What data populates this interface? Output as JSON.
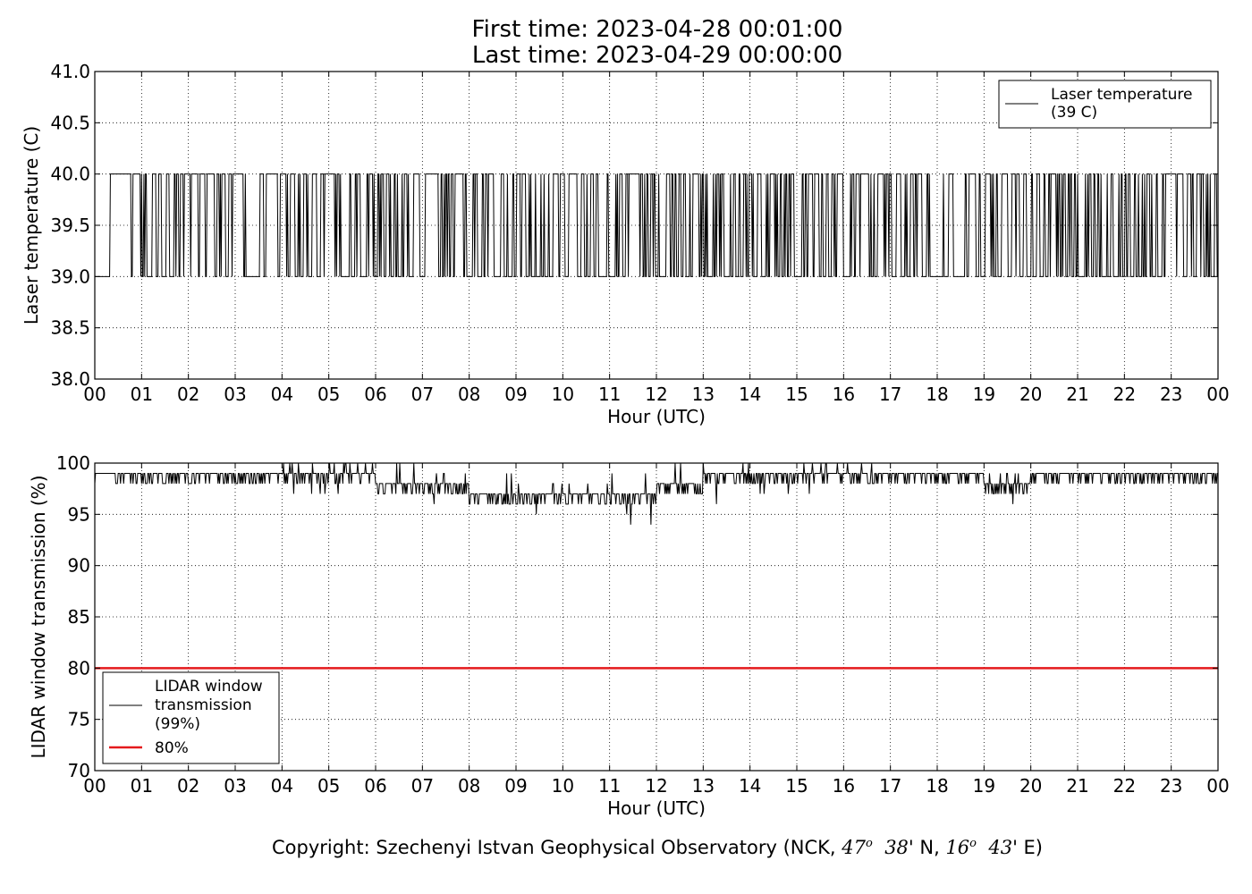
{
  "figure": {
    "title_line1": "First time: 2023-04-28 00:01:00",
    "title_line2": "Last time: 2023-04-29 00:00:00",
    "copyright_prefix": "Copyright: Szechenyi Istvan Geophysical Observatory (NCK, ",
    "coord_lat_deg": "47",
    "coord_lat_min": "38",
    "coord_lat_suffix": "' N, ",
    "coord_lon_deg": "16",
    "coord_lon_min": "43",
    "coord_lon_suffix": "' E)",
    "degree_mark": "o"
  },
  "chart_data": [
    {
      "type": "line",
      "xlabel": "Hour (UTC)",
      "ylabel": "Laser temperature (C)",
      "xlim": [
        0,
        24
      ],
      "ylim": [
        38.0,
        41.0
      ],
      "xticks": [
        "00",
        "01",
        "02",
        "03",
        "04",
        "05",
        "06",
        "07",
        "08",
        "09",
        "10",
        "11",
        "12",
        "13",
        "14",
        "15",
        "16",
        "17",
        "18",
        "19",
        "20",
        "21",
        "22",
        "23",
        "00"
      ],
      "yticks": [
        "38.0",
        "38.5",
        "39.0",
        "39.5",
        "40.0",
        "40.5",
        "41.0"
      ],
      "grid": true,
      "legend_position": "top-right",
      "series": [
        {
          "name": "Laser temperature\n(39 C)",
          "color": "#000000",
          "values_set": [
            39.0,
            40.0
          ],
          "baseline": 39.0,
          "toggle_density": [
            0.2,
            0.55,
            0.45,
            0.35,
            0.45,
            0.6,
            0.45,
            0.5,
            0.45,
            0.55,
            0.5,
            0.55,
            0.45,
            0.6,
            0.65,
            0.65,
            0.65,
            0.45,
            0.3,
            0.35,
            0.55,
            0.6,
            0.6,
            0.6
          ]
        }
      ]
    },
    {
      "type": "line",
      "xlabel": "Hour (UTC)",
      "ylabel": "LIDAR window transmission (%)",
      "xlim": [
        0,
        24
      ],
      "ylim": [
        70,
        100
      ],
      "xticks": [
        "00",
        "01",
        "02",
        "03",
        "04",
        "05",
        "06",
        "07",
        "08",
        "09",
        "10",
        "11",
        "12",
        "13",
        "14",
        "15",
        "16",
        "17",
        "18",
        "19",
        "20",
        "21",
        "22",
        "23",
        "00"
      ],
      "yticks": [
        "70",
        "75",
        "80",
        "85",
        "90",
        "95",
        "100"
      ],
      "grid": true,
      "legend_position": "bottom-left",
      "series": [
        {
          "name": "LIDAR window\ntransmission\n(99%)",
          "color": "#000000",
          "hourly_typical": [
            99,
            99,
            99,
            99,
            98.5,
            98.5,
            98,
            97.5,
            97,
            96.5,
            96.5,
            97,
            98,
            98.5,
            98.5,
            99,
            98.5,
            98.5,
            98.5,
            98,
            99,
            99,
            99,
            99
          ],
          "hourly_min": [
            98,
            98,
            98,
            98,
            97,
            97,
            96,
            96,
            95,
            95,
            95,
            94,
            97,
            96,
            97,
            97,
            98,
            97,
            98,
            96,
            98,
            98,
            98,
            98
          ],
          "hourly_max": [
            99,
            99,
            99,
            99,
            100,
            100,
            100,
            99,
            99,
            98,
            98,
            99,
            100,
            100,
            100,
            100,
            100,
            99,
            99,
            99,
            99,
            99,
            99,
            99
          ]
        },
        {
          "name": "80%",
          "color": "#e41a1c",
          "values": [
            80,
            80
          ]
        }
      ]
    }
  ]
}
